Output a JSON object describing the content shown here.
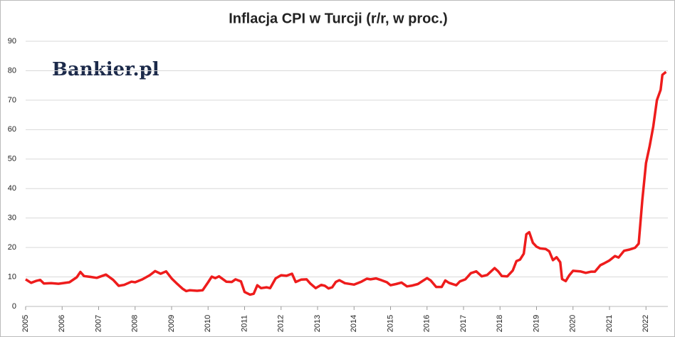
{
  "brand": "Bankier.pl",
  "chart_data": {
    "type": "line",
    "title": "Inflacja CPI w Turcji (r/r, w proc.)",
    "xlim": [
      2005,
      2022.6
    ],
    "xticks": [
      2005,
      2006,
      2007,
      2008,
      2009,
      2010,
      2011,
      2012,
      2013,
      2014,
      2015,
      2016,
      2017,
      2018,
      2019,
      2020,
      2021,
      2022
    ],
    "ylim": [
      0,
      90
    ],
    "yticks": [
      0,
      10,
      20,
      30,
      40,
      50,
      60,
      70,
      80,
      90
    ],
    "grid": true,
    "series": [
      {
        "name": "CPI",
        "color": "#ee1c1c",
        "x": [
          2005.0,
          2005.15,
          2005.3,
          2005.4,
          2005.5,
          2005.7,
          2005.9,
          2006.2,
          2006.4,
          2006.5,
          2006.6,
          2006.8,
          2006.95,
          2007.2,
          2007.4,
          2007.55,
          2007.7,
          2007.9,
          2008.0,
          2008.2,
          2008.4,
          2008.55,
          2008.7,
          2008.85,
          2009.0,
          2009.15,
          2009.3,
          2009.4,
          2009.5,
          2009.7,
          2009.85,
          2010.0,
          2010.1,
          2010.2,
          2010.3,
          2010.5,
          2010.65,
          2010.75,
          2010.9,
          2011.0,
          2011.15,
          2011.25,
          2011.35,
          2011.45,
          2011.6,
          2011.7,
          2011.85,
          2012.0,
          2012.15,
          2012.3,
          2012.4,
          2012.55,
          2012.7,
          2012.8,
          2012.95,
          2013.1,
          2013.2,
          2013.3,
          2013.4,
          2013.5,
          2013.6,
          2013.75,
          2014.0,
          2014.2,
          2014.35,
          2014.45,
          2014.6,
          2014.75,
          2014.9,
          2015.0,
          2015.15,
          2015.3,
          2015.45,
          2015.6,
          2015.75,
          2015.9,
          2016.0,
          2016.1,
          2016.25,
          2016.4,
          2016.5,
          2016.6,
          2016.8,
          2016.9,
          2017.05,
          2017.2,
          2017.35,
          2017.5,
          2017.65,
          2017.85,
          2017.95,
          2018.05,
          2018.2,
          2018.35,
          2018.45,
          2018.55,
          2018.65,
          2018.72,
          2018.8,
          2018.9,
          2019.0,
          2019.1,
          2019.25,
          2019.35,
          2019.45,
          2019.55,
          2019.65,
          2019.7,
          2019.8,
          2019.9,
          2020.0,
          2020.2,
          2020.35,
          2020.5,
          2020.6,
          2020.75,
          2020.85,
          2021.0,
          2021.15,
          2021.25,
          2021.4,
          2021.55,
          2021.7,
          2021.8,
          2021.9,
          2022.0,
          2022.1,
          2022.2,
          2022.3,
          2022.4,
          2022.45,
          2022.55
        ],
        "values": [
          9.2,
          8.0,
          8.7,
          9.0,
          7.8,
          7.9,
          7.7,
          8.2,
          9.9,
          11.7,
          10.3,
          10.0,
          9.7,
          10.8,
          9.0,
          7.0,
          7.3,
          8.4,
          8.2,
          9.2,
          10.6,
          12.0,
          11.1,
          11.9,
          9.5,
          7.7,
          6.0,
          5.2,
          5.5,
          5.3,
          5.5,
          8.2,
          10.1,
          9.6,
          10.2,
          8.4,
          8.3,
          9.2,
          8.5,
          4.9,
          4.0,
          4.3,
          7.2,
          6.2,
          6.5,
          6.2,
          9.5,
          10.6,
          10.4,
          11.1,
          8.3,
          9.1,
          9.2,
          7.8,
          6.2,
          7.3,
          7.0,
          6.1,
          6.5,
          8.3,
          8.9,
          7.9,
          7.4,
          8.4,
          9.4,
          9.2,
          9.5,
          8.9,
          8.2,
          7.2,
          7.6,
          8.1,
          6.8,
          7.1,
          7.6,
          8.8,
          9.6,
          8.8,
          6.6,
          6.6,
          8.8,
          8.0,
          7.2,
          8.5,
          9.2,
          11.3,
          11.9,
          10.2,
          10.7,
          13.0,
          11.9,
          10.3,
          10.2,
          12.2,
          15.4,
          15.9,
          17.9,
          24.5,
          25.2,
          21.6,
          20.3,
          19.7,
          19.5,
          18.7,
          15.7,
          16.7,
          15.0,
          9.3,
          8.6,
          10.6,
          12.1,
          11.9,
          11.4,
          11.8,
          11.8,
          14.0,
          14.6,
          15.6,
          17.1,
          16.6,
          18.9,
          19.3,
          19.9,
          21.3,
          36.1,
          48.7,
          54.4,
          61.1,
          70.0,
          73.5,
          78.6,
          79.6
        ]
      }
    ]
  }
}
